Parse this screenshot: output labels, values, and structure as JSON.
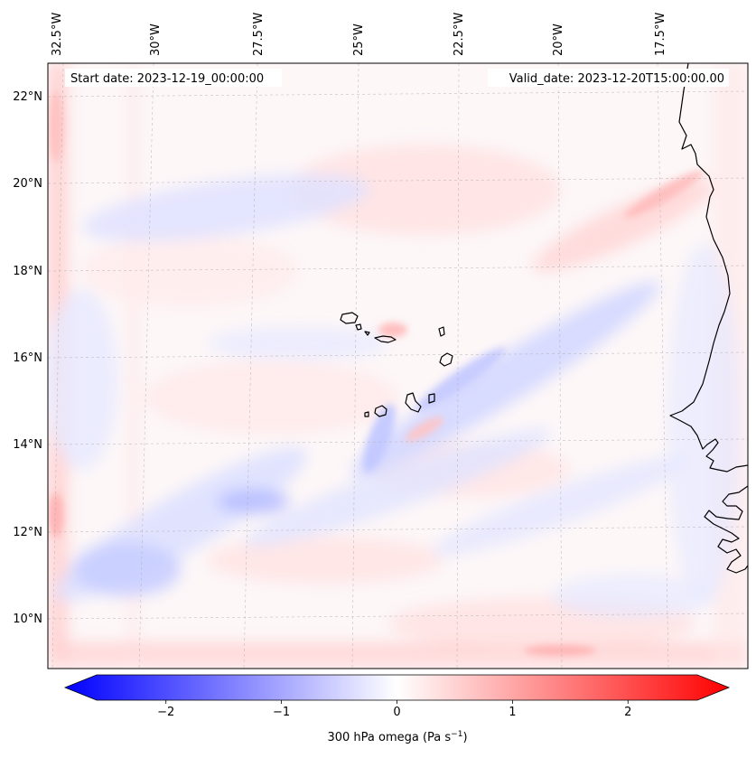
{
  "map": {
    "start_date": "Start date: 2023-12-19_00:00:00",
    "valid_date": "Valid_date: 2023-12-20T15:00:00.00",
    "lon_labels": [
      "32.5°W",
      "30°W",
      "27.5°W",
      "25°W",
      "22.5°W",
      "20°W",
      "17.5°W"
    ],
    "lat_labels": [
      "22°N",
      "20°N",
      "18°N",
      "16°N",
      "14°N",
      "12°N",
      "10°N"
    ],
    "extent": {
      "lon_min": -32.8,
      "lon_max": -15.5,
      "lat_min": 8.8,
      "lat_max": 22.7
    },
    "field": "300 hPa omega",
    "colormap": "bwr",
    "colors": {
      "neg": "#0000ff",
      "mid": "#ffffff",
      "pos": "#ff0000",
      "coast": "#000000"
    }
  },
  "colorbar": {
    "label_main": "300 hPa omega (Pa s",
    "label_exp": "−1",
    "label_close": ")",
    "ticks": [
      "−2",
      "−1",
      "0",
      "1",
      "2"
    ],
    "tick_values": [
      -2,
      -1,
      0,
      1,
      2
    ],
    "vmin": -2.6,
    "vmax": 2.6
  }
}
